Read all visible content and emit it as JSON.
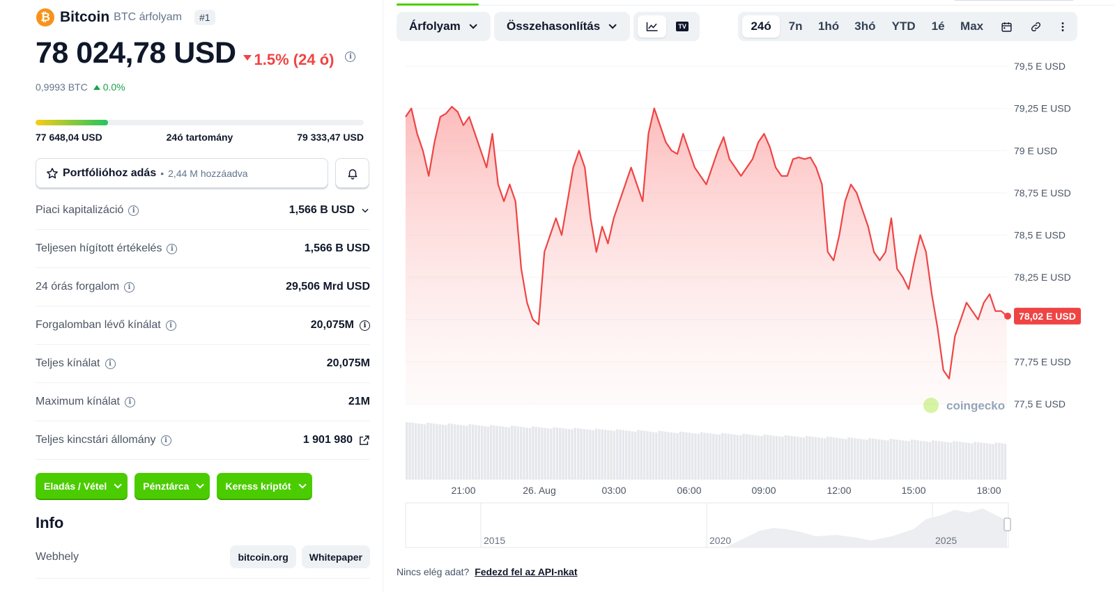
{
  "coin": {
    "logo_glyph": "₿",
    "name": "Bitcoin",
    "subtitle": "BTC árfolyam",
    "rank": "#1",
    "price": "78 024,78 USD",
    "change": "1.5% (24 ó)",
    "btc_price": "0,9993 BTC",
    "btc_change": "0.0%",
    "brand_color": "#f7931a"
  },
  "range": {
    "low": "77 648,04 USD",
    "label": "24ó tartomány",
    "high": "79 333,47 USD",
    "position_fraction": 0.22
  },
  "portfolio": {
    "label": "Portfólióhoz adás",
    "separator": "•",
    "added": "2,44 M hozzáadva",
    "star_icon": "star-icon",
    "bell_icon": "bell-icon"
  },
  "stats": [
    {
      "label": "Piaci kapitalizáció",
      "value": "1,566 B USD",
      "suffix_icon": "chevron-down-icon"
    },
    {
      "label": "Teljesen hígított értékelés",
      "value": "1,566 B USD",
      "suffix_icon": ""
    },
    {
      "label": "24 órás forgalom",
      "value": "29,506 Mrd USD",
      "suffix_icon": ""
    },
    {
      "label": "Forgalomban lévő kínálat",
      "value": "20,075M",
      "suffix_icon": "info-icon"
    },
    {
      "label": "Teljes kínálat",
      "value": "20,075M",
      "suffix_icon": ""
    },
    {
      "label": "Maximum kínálat",
      "value": "21M",
      "suffix_icon": ""
    },
    {
      "label": "Teljes kincstári állomány",
      "value": "1 901 980",
      "suffix_icon": "external-link-icon"
    }
  ],
  "actions": [
    {
      "label": "Eladás / Vétel"
    },
    {
      "label": "Pénztárca"
    },
    {
      "label": "Keress kriptót"
    }
  ],
  "info": {
    "title": "Info",
    "website_label": "Webhely",
    "links": [
      "bitcoin.org",
      "Whitepaper"
    ]
  },
  "toolbar": {
    "price_dropdown": "Árfolyam",
    "compare_dropdown": "Összehasonlítás",
    "chart_icons": [
      "line-chart-icon",
      "tradingview-icon"
    ],
    "tradingview_glyph": "TV",
    "ranges": [
      "24ó",
      "7n",
      "1hó",
      "3hó",
      "YTD",
      "1é",
      "Max"
    ],
    "active_range": "24ó",
    "extra_icons": [
      "calendar-icon",
      "link-icon",
      "more-vertical-icon"
    ]
  },
  "chart_data": {
    "type": "line",
    "title": "",
    "xlabel": "",
    "ylabel": "",
    "y_unit": "USD",
    "ylim": [
      77500,
      79500
    ],
    "y_ticks": [
      {
        "value": 79500,
        "label": "79,5 E USD"
      },
      {
        "value": 79250,
        "label": "79,25 E USD"
      },
      {
        "value": 79000,
        "label": "79 E USD"
      },
      {
        "value": 78750,
        "label": "78,75 E USD"
      },
      {
        "value": 78500,
        "label": "78,5 E USD"
      },
      {
        "value": 78250,
        "label": "78,25 E USD"
      },
      {
        "value": 78000,
        "label": ""
      },
      {
        "value": 77750,
        "label": "77,75 E USD"
      },
      {
        "value": 77500,
        "label": "77,5 E USD"
      }
    ],
    "x_ticks": [
      "21:00",
      "26. Aug",
      "03:00",
      "06:00",
      "09:00",
      "12:00",
      "15:00",
      "18:00"
    ],
    "current_label": "78,02 E USD",
    "line_color": "#ef4444",
    "watermark": "coingecko",
    "values": [
      79200,
      79250,
      79100,
      79000,
      78850,
      79050,
      79200,
      79220,
      79260,
      79230,
      79150,
      79200,
      79100,
      79000,
      78900,
      79100,
      78800,
      78700,
      78800,
      78700,
      78300,
      78100,
      78000,
      77970,
      78400,
      78500,
      78600,
      78500,
      78700,
      78900,
      79000,
      78900,
      78600,
      78400,
      78550,
      78450,
      78600,
      78700,
      78800,
      78900,
      78800,
      78700,
      79100,
      79250,
      79150,
      79050,
      79000,
      78980,
      79100,
      79000,
      78900,
      78850,
      78800,
      78900,
      79000,
      79080,
      78950,
      78900,
      78850,
      78900,
      78950,
      79050,
      79100,
      79020,
      78900,
      78850,
      78850,
      78950,
      78960,
      78950,
      78960,
      78900,
      78800,
      78400,
      78350,
      78500,
      78700,
      78800,
      78750,
      78650,
      78550,
      78400,
      78350,
      78400,
      78600,
      78300,
      78250,
      78180,
      78350,
      78500,
      78400,
      78150,
      77950,
      77700,
      77650,
      77900,
      78000,
      78100,
      78050,
      78000,
      78100,
      78150,
      78050,
      78050,
      78020
    ],
    "overview_x_labels": [
      "2015",
      "2020",
      "2025"
    ]
  },
  "footer": {
    "text": "Nincs elég adat?",
    "link": "Fedezd fel az API-nkat"
  }
}
